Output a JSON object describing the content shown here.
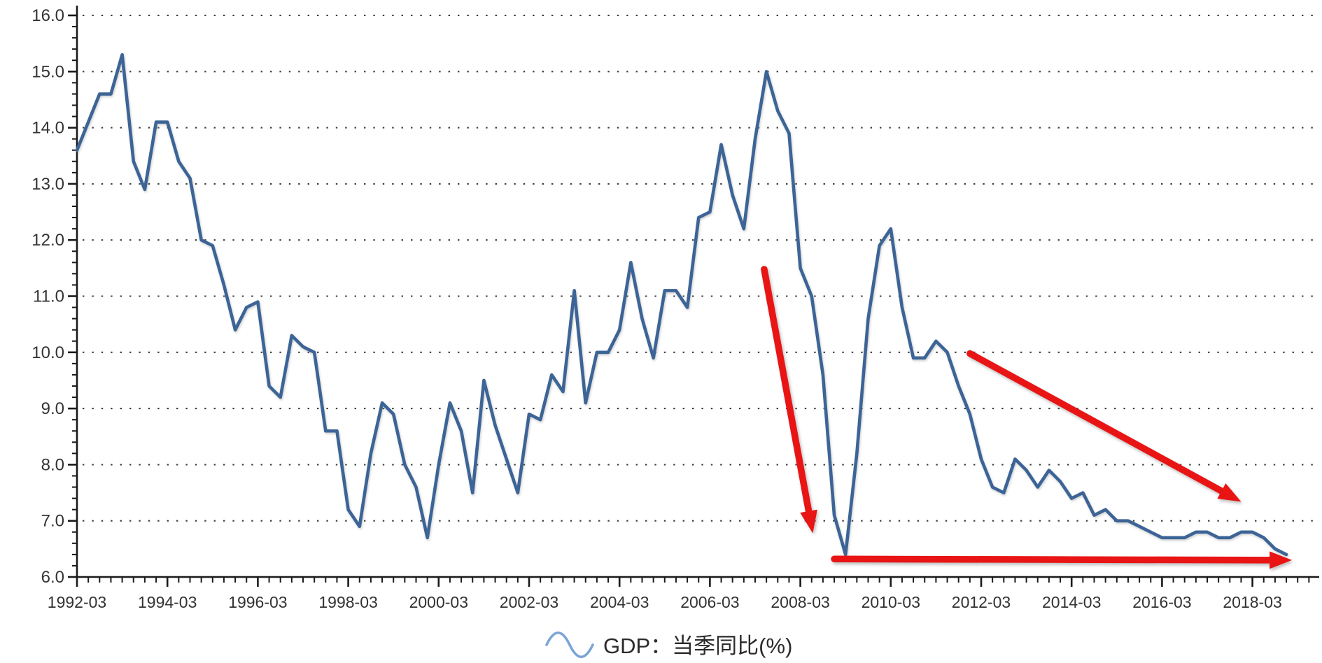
{
  "legend": {
    "label": "GDP：当季同比(%)"
  },
  "chart_data": {
    "type": "line",
    "title": "",
    "legend_position": "bottom-center",
    "background": "#ffffff",
    "grid": {
      "horizontal": "dotted",
      "color": "#3c3c3c"
    },
    "x_axis": {
      "frequency": "quarterly",
      "minor_ticks": "every quarter",
      "labeled_every_quarters": 8,
      "tick_labels": [
        "1992-03",
        "1994-03",
        "1996-03",
        "1998-03",
        "2000-03",
        "2002-03",
        "2004-03",
        "2006-03",
        "2008-03",
        "2010-03",
        "2012-03",
        "2014-03",
        "2016-03",
        "2018-03"
      ]
    },
    "y_axis": {
      "min": 6.0,
      "max": 16.0,
      "major_step": 1.0,
      "minor_step": 0.2,
      "tick_labels": [
        "16.0",
        "15.0",
        "14.0",
        "13.0",
        "12.0",
        "11.0",
        "10.0",
        "9.0",
        "8.0",
        "7.0",
        "6.0"
      ]
    },
    "series": [
      {
        "name": "GDP：当季同比(%)",
        "color": "#3c6496",
        "start": "1992-Q1",
        "end": "2018-Q4",
        "frequency": "quarterly",
        "values": [
          13.6,
          14.1,
          14.6,
          14.6,
          15.3,
          13.4,
          12.9,
          14.1,
          14.1,
          13.4,
          13.1,
          12.0,
          11.9,
          11.2,
          10.4,
          10.8,
          10.9,
          9.4,
          9.2,
          10.3,
          10.1,
          10.0,
          8.6,
          8.6,
          7.2,
          6.9,
          8.2,
          9.1,
          8.9,
          8.0,
          7.6,
          6.7,
          8.0,
          9.1,
          8.6,
          7.5,
          9.5,
          8.7,
          8.1,
          7.5,
          8.9,
          8.8,
          9.6,
          9.3,
          11.1,
          9.1,
          10.0,
          10.0,
          10.4,
          11.6,
          10.6,
          9.9,
          11.1,
          11.1,
          10.8,
          12.4,
          12.5,
          13.7,
          12.8,
          12.2,
          13.8,
          15.0,
          14.3,
          13.9,
          11.5,
          11.0,
          9.6,
          7.1,
          6.4,
          8.2,
          10.6,
          11.9,
          12.2,
          10.8,
          9.9,
          9.9,
          10.2,
          10.0,
          9.4,
          8.9,
          8.1,
          7.6,
          7.5,
          8.1,
          7.9,
          7.6,
          7.9,
          7.7,
          7.4,
          7.5,
          7.1,
          7.2,
          7.0,
          7.0,
          6.9,
          6.8,
          6.7,
          6.7,
          6.7,
          6.8,
          6.8,
          6.7,
          6.7,
          6.8,
          6.8,
          6.7,
          6.5,
          6.4
        ]
      }
    ],
    "annotations": {
      "color": "#e91414",
      "arrows": [
        {
          "name": "sharp-drop-2008-arrow",
          "from_q": 60.8,
          "from_value": 11.48,
          "to_q": 65.1,
          "to_value": 6.78
        },
        {
          "name": "gradual-slowdown-arrow",
          "from_q": 79.0,
          "from_value": 9.98,
          "to_q": 103.0,
          "to_value": 7.34
        },
        {
          "name": "flat-bottom-arrow",
          "from_q": 67.0,
          "from_value": 6.32,
          "to_q": 107.5,
          "to_value": 6.3
        }
      ]
    }
  }
}
